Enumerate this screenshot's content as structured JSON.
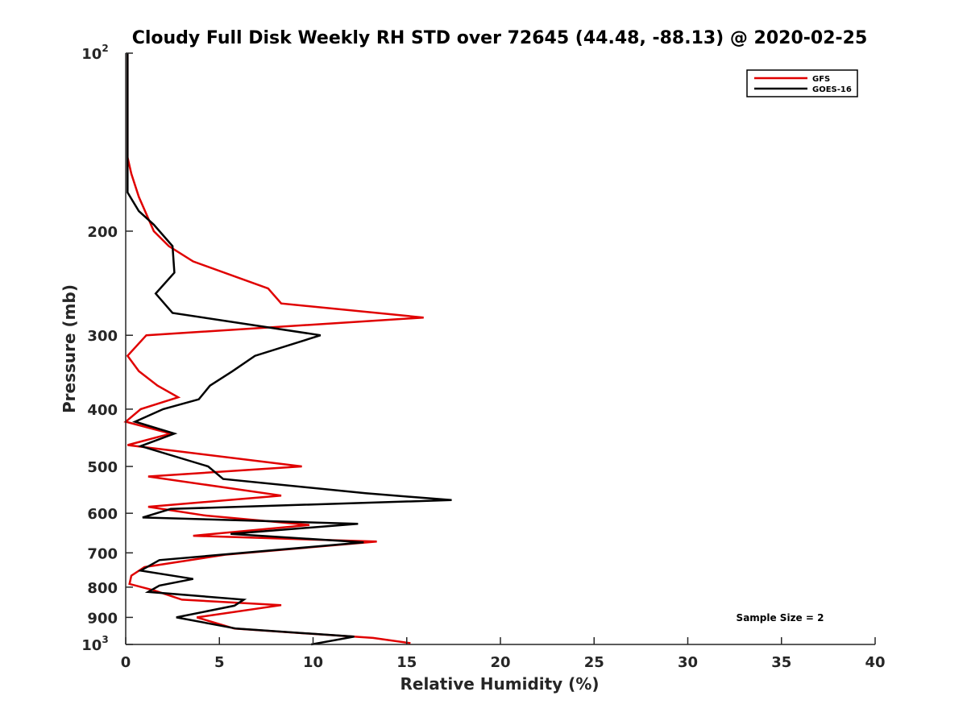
{
  "chart_data": {
    "type": "line",
    "title": "Cloudy Full Disk Weekly RH STD over 72645 (44.48, -88.13) @ 2020-02-25",
    "xlabel": "Relative Humidity (%)",
    "ylabel": "Pressure (mb)",
    "xlim": [
      0,
      40
    ],
    "ylim": [
      100,
      1000
    ],
    "y_scale": "log",
    "y_reversed": true,
    "x_ticks": [
      0,
      5,
      10,
      15,
      20,
      25,
      30,
      35,
      40
    ],
    "x_tick_labels": [
      "0",
      "5",
      "10",
      "15",
      "20",
      "25",
      "30",
      "35",
      "40"
    ],
    "y_ticks": [
      100,
      200,
      300,
      400,
      500,
      600,
      700,
      800,
      900,
      1000
    ],
    "y_tick_labels": [
      {
        "base": "10",
        "sup": "2"
      },
      {
        "base": "200",
        "sup": ""
      },
      {
        "base": "300",
        "sup": ""
      },
      {
        "base": "400",
        "sup": ""
      },
      {
        "base": "500",
        "sup": ""
      },
      {
        "base": "600",
        "sup": ""
      },
      {
        "base": "700",
        "sup": ""
      },
      {
        "base": "800",
        "sup": ""
      },
      {
        "base": "900",
        "sup": ""
      },
      {
        "base": "10",
        "sup": "3"
      }
    ],
    "grid": false,
    "legend_position": "top-right",
    "annotation": "Sample Size = 2",
    "series": [
      {
        "name": "GFS",
        "color": "#e00000",
        "points": [
          [
            0.1,
            100
          ],
          [
            0.1,
            125
          ],
          [
            0.1,
            150
          ],
          [
            0.3,
            160
          ],
          [
            0.7,
            175
          ],
          [
            1.5,
            200
          ],
          [
            2.3,
            212
          ],
          [
            3.6,
            225
          ],
          [
            7.6,
            250
          ],
          [
            8.3,
            265
          ],
          [
            15.9,
            280
          ],
          [
            1.1,
            300
          ],
          [
            0.1,
            325
          ],
          [
            0.7,
            345
          ],
          [
            1.7,
            365
          ],
          [
            2.8,
            382
          ],
          [
            0.8,
            400
          ],
          [
            0.0,
            420
          ],
          [
            2.4,
            440
          ],
          [
            0.1,
            460
          ],
          [
            9.4,
            500
          ],
          [
            1.2,
            520
          ],
          [
            8.3,
            560
          ],
          [
            1.2,
            585
          ],
          [
            4.2,
            605
          ],
          [
            9.8,
            628
          ],
          [
            3.6,
            655
          ],
          [
            13.4,
            670
          ],
          [
            5.3,
            705
          ],
          [
            1.0,
            740
          ],
          [
            0.3,
            765
          ],
          [
            0.2,
            790
          ],
          [
            1.5,
            810
          ],
          [
            3.0,
            840
          ],
          [
            8.3,
            858
          ],
          [
            3.8,
            900
          ],
          [
            5.8,
            940
          ],
          [
            13.2,
            975
          ],
          [
            15.2,
            995
          ]
        ]
      },
      {
        "name": "GOES-16",
        "color": "#000000",
        "points": [
          [
            0.1,
            100
          ],
          [
            0.1,
            125
          ],
          [
            0.1,
            150
          ],
          [
            0.1,
            172
          ],
          [
            0.7,
            185
          ],
          [
            1.5,
            195
          ],
          [
            2.5,
            212
          ],
          [
            2.6,
            235
          ],
          [
            1.6,
            255
          ],
          [
            2.5,
            275
          ],
          [
            10.4,
            300
          ],
          [
            6.9,
            325
          ],
          [
            5.7,
            345
          ],
          [
            4.5,
            365
          ],
          [
            3.9,
            385
          ],
          [
            2.0,
            400
          ],
          [
            0.5,
            420
          ],
          [
            2.6,
            440
          ],
          [
            0.8,
            462
          ],
          [
            4.4,
            500
          ],
          [
            5.2,
            525
          ],
          [
            12.8,
            555
          ],
          [
            17.4,
            570
          ],
          [
            2.4,
            590
          ],
          [
            0.9,
            610
          ],
          [
            12.4,
            625
          ],
          [
            5.6,
            650
          ],
          [
            12.7,
            672
          ],
          [
            1.8,
            720
          ],
          [
            0.8,
            750
          ],
          [
            3.6,
            775
          ],
          [
            1.8,
            795
          ],
          [
            1.2,
            815
          ],
          [
            6.3,
            840
          ],
          [
            5.8,
            860
          ],
          [
            2.7,
            900
          ],
          [
            5.9,
            940
          ],
          [
            12.2,
            970
          ],
          [
            9.9,
            1000
          ]
        ]
      }
    ]
  }
}
